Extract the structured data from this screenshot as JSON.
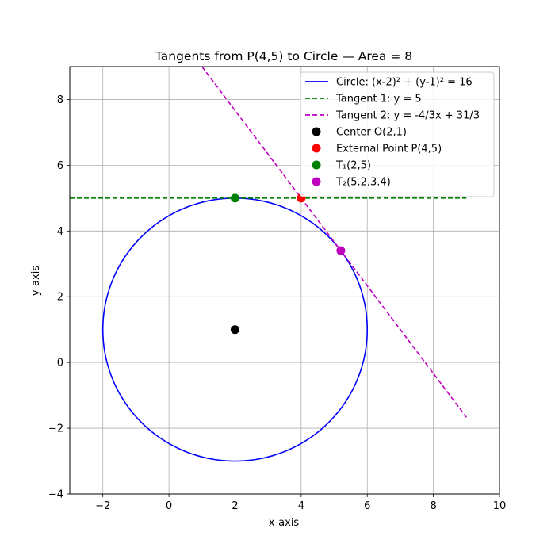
{
  "chart_data": {
    "type": "line",
    "title": "Tangents from P(4,5) to Circle — Area = 8",
    "xlabel": "x-axis",
    "ylabel": "y-axis",
    "xlim": [
      -3,
      10
    ],
    "ylim": [
      -4,
      9
    ],
    "xticks": [
      -2,
      0,
      2,
      4,
      6,
      8,
      10
    ],
    "yticks": [
      -4,
      -2,
      0,
      2,
      4,
      6,
      8
    ],
    "grid": true,
    "legend_position": "top-right",
    "series": [
      {
        "name": "Circle: (x-2)² + (y-1)² = 16",
        "kind": "circle",
        "center": [
          2,
          1
        ],
        "radius": 4,
        "color": "#0000ff",
        "dash": "solid"
      },
      {
        "name": "Tangent 1: y = 5",
        "kind": "line",
        "x": [
          -3,
          9
        ],
        "y": [
          5,
          5
        ],
        "color": "#008000",
        "dash": "dashed"
      },
      {
        "name": "Tangent 2: y = -4/3x + 31/3",
        "kind": "line",
        "x": [
          1,
          9
        ],
        "y": [
          9,
          -1.6667
        ],
        "color": "#bf00bf",
        "dash": "dashed"
      },
      {
        "name": "Center O(2,1)",
        "kind": "point",
        "x": [
          2
        ],
        "y": [
          1
        ],
        "color": "#000000"
      },
      {
        "name": "External Point P(4,5)",
        "kind": "point",
        "x": [
          4
        ],
        "y": [
          5
        ],
        "color": "#ff0000"
      },
      {
        "name": "T₁(2,5)",
        "kind": "point",
        "x": [
          2
        ],
        "y": [
          5
        ],
        "color": "#008000"
      },
      {
        "name": "T₂(5.2,3.4)",
        "kind": "point",
        "x": [
          5.2
        ],
        "y": [
          3.4
        ],
        "color": "#bf00bf"
      }
    ]
  }
}
